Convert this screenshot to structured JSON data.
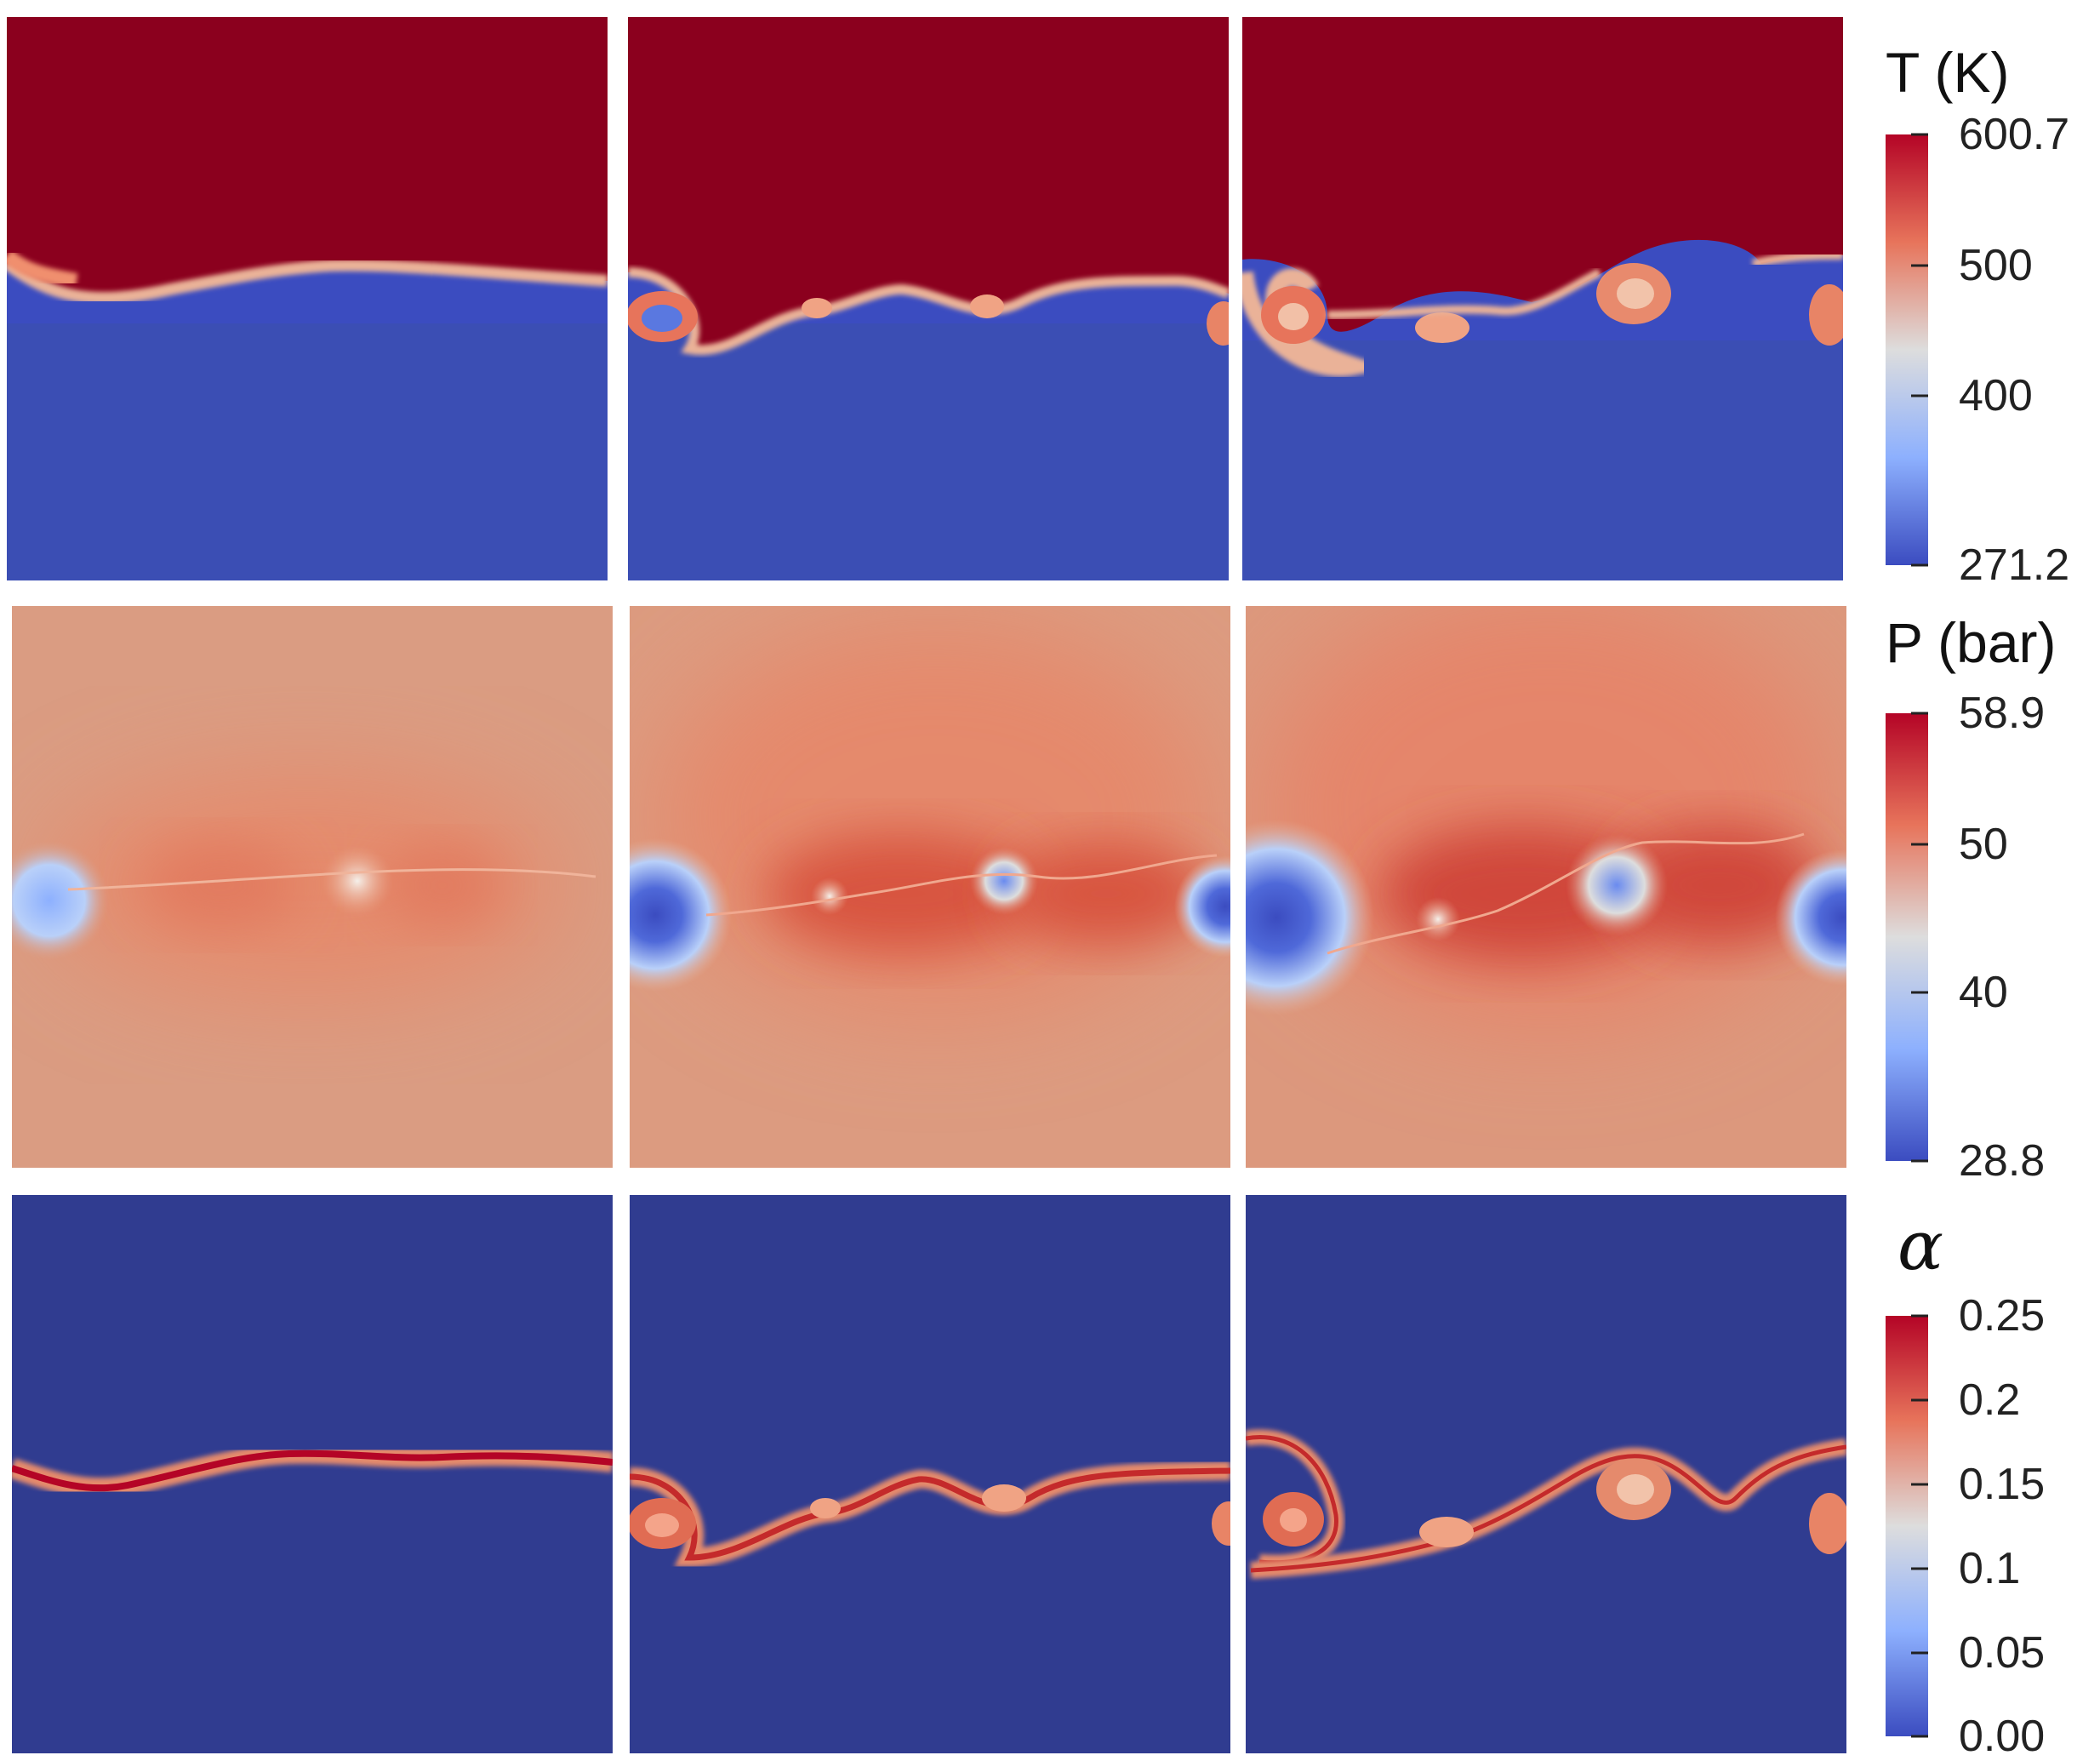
{
  "colorbars": [
    {
      "id": "temperature",
      "title": "T (K)",
      "min": 271.2,
      "max": 600.7,
      "ticks": [
        "600.7",
        "500",
        "400",
        "271.2"
      ],
      "tick_values": [
        600.7,
        500,
        400,
        271.2
      ]
    },
    {
      "id": "pressure",
      "title": "P (bar)",
      "min": 28.8,
      "max": 58.9,
      "ticks": [
        "58.9",
        "50",
        "40",
        "28.8"
      ],
      "tick_values": [
        58.9,
        50,
        40,
        28.8
      ]
    },
    {
      "id": "volume-fraction",
      "title": "α",
      "min": 0.0,
      "max": 0.25,
      "ticks": [
        "0.25",
        "0.2",
        "0.15",
        "0.1",
        "0.05",
        "0.00"
      ],
      "tick_values": [
        0.25,
        0.2,
        0.15,
        0.1,
        0.05,
        0.0
      ]
    }
  ],
  "colormap": "cool-to-warm",
  "colors": {
    "low": "#3b4cc0",
    "mid": "#dddddd",
    "high": "#b40426",
    "dark_red": "#8b001e",
    "deep_blue": "#303c90"
  }
}
